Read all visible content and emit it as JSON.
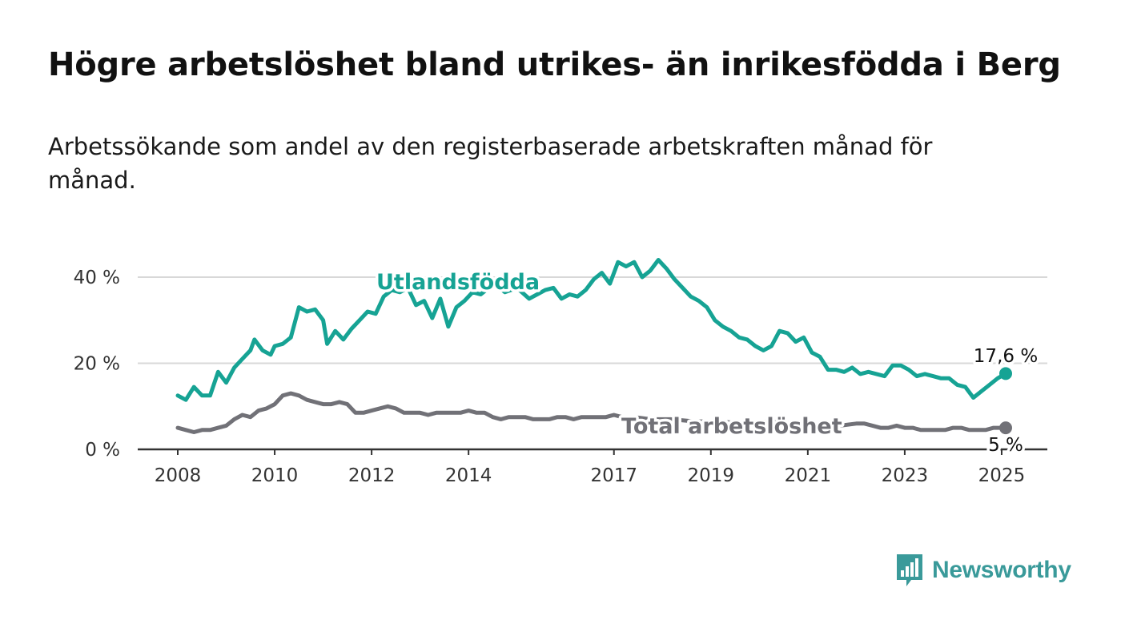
{
  "title": "Högre arbetslöshet bland utrikes- än inrikesfödda i Berg",
  "subtitle": "Arbetssökande som andel av den registerbaserade arbetskraften månad för månad.",
  "brand": {
    "name": "Newsworthy",
    "icon": "bar-chart-speech-bubble-icon",
    "color": "#3a9a9a"
  },
  "chart_data": {
    "type": "line",
    "x_ticks": [
      "2008",
      "2010",
      "2012",
      "2014",
      "2017",
      "2019",
      "2021",
      "2023",
      "2025"
    ],
    "y_ticks": [
      {
        "value": 0,
        "label": "0 %"
      },
      {
        "value": 20,
        "label": "20 %"
      },
      {
        "value": 40,
        "label": "40 %"
      }
    ],
    "ylim": [
      0,
      45
    ],
    "xlim": [
      "2008-01",
      "2025-02"
    ],
    "grid": true,
    "series": [
      {
        "name": "Utlandsfödda",
        "color": "#16a394",
        "end_label": "17,6 %",
        "points": [
          [
            "2008-01",
            12.5
          ],
          [
            "2008-03",
            11.5
          ],
          [
            "2008-05",
            14.5
          ],
          [
            "2008-07",
            12.5
          ],
          [
            "2008-09",
            12.5
          ],
          [
            "2008-11",
            18.0
          ],
          [
            "2009-01",
            15.5
          ],
          [
            "2009-03",
            19.0
          ],
          [
            "2009-05",
            21.0
          ],
          [
            "2009-07",
            23.0
          ],
          [
            "2009-08",
            25.5
          ],
          [
            "2009-10",
            23.0
          ],
          [
            "2009-12",
            22.0
          ],
          [
            "2010-01",
            24.0
          ],
          [
            "2010-03",
            24.5
          ],
          [
            "2010-05",
            26.0
          ],
          [
            "2010-07",
            33.0
          ],
          [
            "2010-09",
            32.0
          ],
          [
            "2010-11",
            32.5
          ],
          [
            "2011-01",
            30.0
          ],
          [
            "2011-02",
            24.5
          ],
          [
            "2011-04",
            27.5
          ],
          [
            "2011-06",
            25.5
          ],
          [
            "2011-08",
            28.0
          ],
          [
            "2011-10",
            30.0
          ],
          [
            "2011-12",
            32.0
          ],
          [
            "2012-02",
            31.5
          ],
          [
            "2012-04",
            35.5
          ],
          [
            "2012-06",
            37.0
          ],
          [
            "2012-08",
            36.5
          ],
          [
            "2012-10",
            37.5
          ],
          [
            "2012-12",
            33.5
          ],
          [
            "2013-02",
            34.5
          ],
          [
            "2013-04",
            30.5
          ],
          [
            "2013-06",
            35.0
          ],
          [
            "2013-08",
            28.5
          ],
          [
            "2013-10",
            33.0
          ],
          [
            "2013-12",
            34.5
          ],
          [
            "2014-02",
            36.5
          ],
          [
            "2014-04",
            36.0
          ],
          [
            "2014-06",
            37.5
          ],
          [
            "2014-08",
            38.0
          ],
          [
            "2014-10",
            36.5
          ],
          [
            "2015-01",
            37.5
          ],
          [
            "2015-04",
            35.0
          ],
          [
            "2015-06",
            36.0
          ],
          [
            "2015-08",
            37.0
          ],
          [
            "2015-10",
            37.5
          ],
          [
            "2015-12",
            35.0
          ],
          [
            "2016-02",
            36.0
          ],
          [
            "2016-04",
            35.5
          ],
          [
            "2016-06",
            37.0
          ],
          [
            "2016-08",
            39.5
          ],
          [
            "2016-10",
            41.0
          ],
          [
            "2016-12",
            38.5
          ],
          [
            "2017-02",
            43.5
          ],
          [
            "2017-04",
            42.5
          ],
          [
            "2017-06",
            43.5
          ],
          [
            "2017-08",
            40.0
          ],
          [
            "2017-10",
            41.5
          ],
          [
            "2017-12",
            44.0
          ],
          [
            "2018-02",
            42.0
          ],
          [
            "2018-04",
            39.5
          ],
          [
            "2018-06",
            37.5
          ],
          [
            "2018-08",
            35.5
          ],
          [
            "2018-10",
            34.5
          ],
          [
            "2018-12",
            33.0
          ],
          [
            "2019-02",
            30.0
          ],
          [
            "2019-04",
            28.5
          ],
          [
            "2019-06",
            27.5
          ],
          [
            "2019-08",
            26.0
          ],
          [
            "2019-10",
            25.5
          ],
          [
            "2019-12",
            24.0
          ],
          [
            "2020-02",
            23.0
          ],
          [
            "2020-04",
            24.0
          ],
          [
            "2020-06",
            27.5
          ],
          [
            "2020-08",
            27.0
          ],
          [
            "2020-10",
            25.0
          ],
          [
            "2020-12",
            26.0
          ],
          [
            "2021-02",
            22.5
          ],
          [
            "2021-04",
            21.5
          ],
          [
            "2021-06",
            18.5
          ],
          [
            "2021-08",
            18.5
          ],
          [
            "2021-10",
            18.0
          ],
          [
            "2021-12",
            19.0
          ],
          [
            "2022-02",
            17.5
          ],
          [
            "2022-04",
            18.0
          ],
          [
            "2022-06",
            17.5
          ],
          [
            "2022-08",
            17.0
          ],
          [
            "2022-10",
            19.5
          ],
          [
            "2022-12",
            19.5
          ],
          [
            "2023-02",
            18.5
          ],
          [
            "2023-04",
            17.0
          ],
          [
            "2023-06",
            17.5
          ],
          [
            "2023-08",
            17.0
          ],
          [
            "2023-10",
            16.5
          ],
          [
            "2023-12",
            16.5
          ],
          [
            "2024-02",
            15.0
          ],
          [
            "2024-04",
            14.5
          ],
          [
            "2024-06",
            12.0
          ],
          [
            "2024-08",
            13.5
          ],
          [
            "2024-10",
            15.0
          ],
          [
            "2024-12",
            16.5
          ],
          [
            "2025-02",
            17.6
          ]
        ]
      },
      {
        "name": "Total arbetslöshet",
        "color": "#717177",
        "end_label": "5 %",
        "points": [
          [
            "2008-01",
            5.0
          ],
          [
            "2008-03",
            4.5
          ],
          [
            "2008-05",
            4.0
          ],
          [
            "2008-07",
            4.5
          ],
          [
            "2008-09",
            4.5
          ],
          [
            "2008-11",
            5.0
          ],
          [
            "2009-01",
            5.5
          ],
          [
            "2009-03",
            7.0
          ],
          [
            "2009-05",
            8.0
          ],
          [
            "2009-07",
            7.5
          ],
          [
            "2009-09",
            9.0
          ],
          [
            "2009-11",
            9.5
          ],
          [
            "2010-01",
            10.5
          ],
          [
            "2010-03",
            12.5
          ],
          [
            "2010-05",
            13.0
          ],
          [
            "2010-07",
            12.5
          ],
          [
            "2010-09",
            11.5
          ],
          [
            "2010-11",
            11.0
          ],
          [
            "2011-01",
            10.5
          ],
          [
            "2011-03",
            10.5
          ],
          [
            "2011-05",
            11.0
          ],
          [
            "2011-07",
            10.5
          ],
          [
            "2011-09",
            8.5
          ],
          [
            "2011-11",
            8.5
          ],
          [
            "2012-01",
            9.0
          ],
          [
            "2012-03",
            9.5
          ],
          [
            "2012-05",
            10.0
          ],
          [
            "2012-07",
            9.5
          ],
          [
            "2012-09",
            8.5
          ],
          [
            "2012-11",
            8.5
          ],
          [
            "2013-01",
            8.5
          ],
          [
            "2013-03",
            8.0
          ],
          [
            "2013-05",
            8.5
          ],
          [
            "2013-07",
            8.5
          ],
          [
            "2013-09",
            8.5
          ],
          [
            "2013-11",
            8.5
          ],
          [
            "2014-01",
            9.0
          ],
          [
            "2014-03",
            8.5
          ],
          [
            "2014-05",
            8.5
          ],
          [
            "2014-07",
            7.5
          ],
          [
            "2014-09",
            7.0
          ],
          [
            "2014-11",
            7.5
          ],
          [
            "2015-01",
            7.5
          ],
          [
            "2015-03",
            7.5
          ],
          [
            "2015-05",
            7.0
          ],
          [
            "2015-07",
            7.0
          ],
          [
            "2015-09",
            7.0
          ],
          [
            "2015-11",
            7.5
          ],
          [
            "2016-01",
            7.5
          ],
          [
            "2016-03",
            7.0
          ],
          [
            "2016-05",
            7.5
          ],
          [
            "2016-07",
            7.5
          ],
          [
            "2016-09",
            7.5
          ],
          [
            "2016-11",
            7.5
          ],
          [
            "2017-01",
            8.0
          ],
          [
            "2017-03",
            7.5
          ],
          [
            "2017-06",
            7.5
          ],
          [
            "2017-10",
            7.0
          ],
          [
            "2018-03",
            7.0
          ],
          [
            "2018-09",
            6.5
          ],
          [
            "2019-03",
            6.5
          ],
          [
            "2019-09",
            6.0
          ],
          [
            "2020-03",
            6.5
          ],
          [
            "2020-09",
            6.0
          ],
          [
            "2021-03",
            5.5
          ],
          [
            "2021-09",
            5.5
          ],
          [
            "2022-01",
            6.0
          ],
          [
            "2022-03",
            6.0
          ],
          [
            "2022-05",
            5.5
          ],
          [
            "2022-07",
            5.0
          ],
          [
            "2022-09",
            5.0
          ],
          [
            "2022-11",
            5.5
          ],
          [
            "2023-01",
            5.0
          ],
          [
            "2023-03",
            5.0
          ],
          [
            "2023-05",
            4.5
          ],
          [
            "2023-07",
            4.5
          ],
          [
            "2023-09",
            4.5
          ],
          [
            "2023-11",
            4.5
          ],
          [
            "2024-01",
            5.0
          ],
          [
            "2024-03",
            5.0
          ],
          [
            "2024-05",
            4.5
          ],
          [
            "2024-07",
            4.5
          ],
          [
            "2024-09",
            4.5
          ],
          [
            "2024-11",
            5.0
          ],
          [
            "2025-02",
            5.0
          ]
        ]
      }
    ]
  }
}
